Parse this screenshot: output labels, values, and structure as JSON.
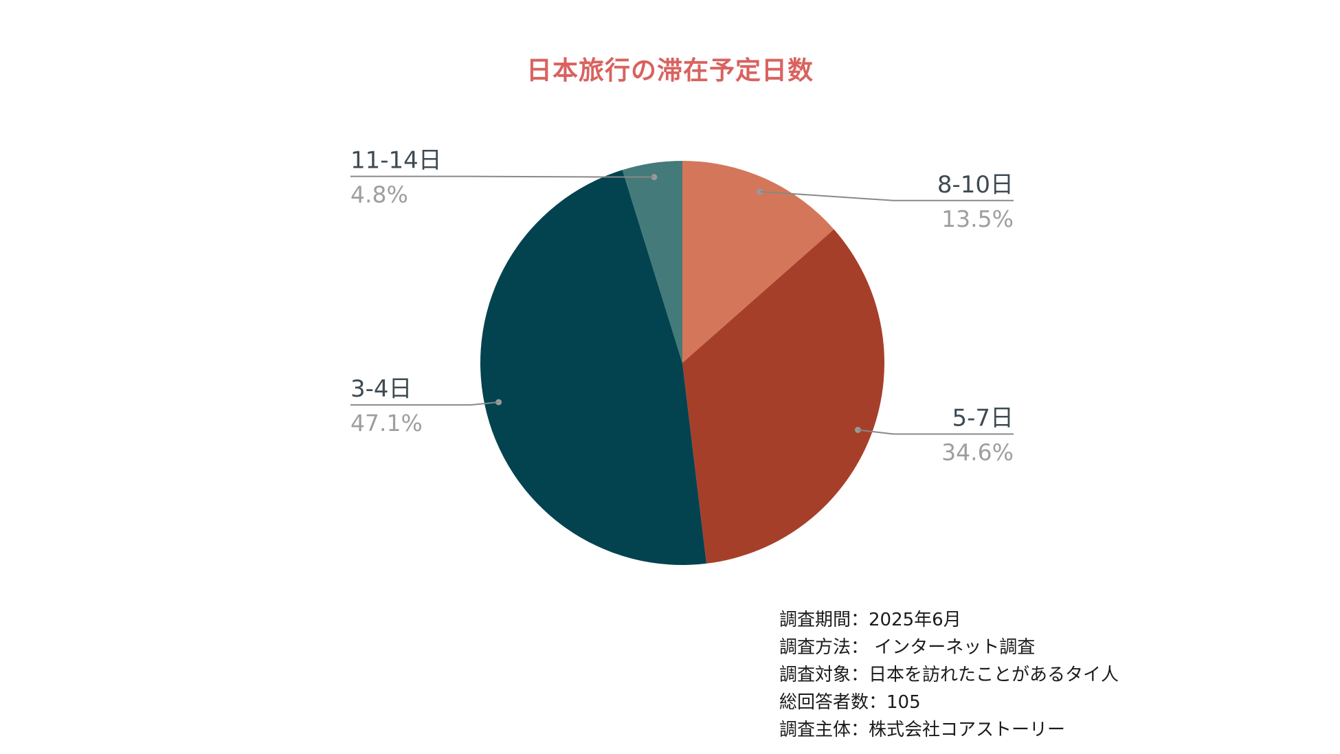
{
  "chart_data": {
    "type": "pie",
    "title": "日本旅行の滞在予定日数",
    "slices": [
      {
        "label": "8-10日",
        "value": 13.5,
        "display": "13.5%",
        "color": "#d4765a",
        "label_side": "right"
      },
      {
        "label": "5-7日",
        "value": 34.6,
        "display": "34.6%",
        "color": "#a63f29",
        "label_side": "right"
      },
      {
        "label": "3-4日",
        "value": 47.1,
        "display": "47.1%",
        "color": "#02434f",
        "label_side": "left"
      },
      {
        "label": "11-14日",
        "value": 4.8,
        "display": "4.8%",
        "color": "#447a79",
        "label_side": "left"
      }
    ],
    "start": "top",
    "direction": "clockwise",
    "label_color": "#3e4a52",
    "value_color": "#9e9e9e",
    "leader_color": "#888888"
  },
  "notes": [
    "調査期間：2025年6月",
    "調査方法：  インターネット調査",
    "調査対象：日本を訪れたことがあるタイ人",
    "総回答者数：105",
    "調査主体：株式会社コアストーリー"
  ]
}
